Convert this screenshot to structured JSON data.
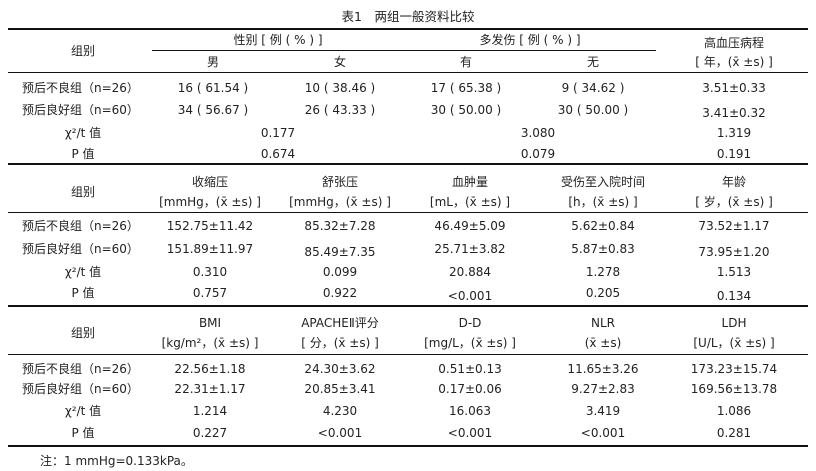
{
  "title": "表1　两组一般资料比较",
  "section1": {
    "row_header": "组别",
    "group_headers": [
      "性别 [ 例 ( % ) ]",
      "多发伤 [ 例 ( % ) ]"
    ],
    "sub_headers": [
      "男",
      "女",
      "有",
      "无"
    ],
    "col5_header_line1": "高血压病程",
    "col5_header_line2": "[ 年，(x̄ ±s) ]",
    "rows": [
      [
        "预后不良组（n=26）",
        "16 ( 61.54 )",
        "10 ( 38.46 )",
        "17 ( 65.38 )",
        "9 ( 34.62 )",
        "3.51±0.33"
      ],
      [
        "预后良好组（n=60）",
        "34 ( 56.67 )",
        "26 ( 43.33 )",
        "30 ( 50.00 )",
        "30 ( 50.00 )",
        "3.41±0.32"
      ]
    ],
    "stat_rows": [
      [
        "χ²/t 值",
        "0.177",
        "3.080",
        "1.319"
      ],
      [
        "P 值",
        "0.674",
        "0.079",
        "0.191"
      ]
    ]
  },
  "section2": {
    "row_header": "组别",
    "headers_line1": [
      "收缩压",
      "舒张压",
      "血肿量",
      "受伤至入院时间",
      "年龄"
    ],
    "headers_line2": [
      "[mmHg，(x̄ ±s) ]",
      "[mmHg，(x̄ ±s) ]",
      "[mL，(x̄ ±s) ]",
      "[h，(x̄ ±s) ]",
      "[ 岁，(x̄ ±s) ]"
    ],
    "rows": [
      [
        "预后不良组（n=26）",
        "152.75±11.42",
        "85.32±7.28",
        "46.49±5.09",
        "5.62±0.84",
        "73.52±1.17"
      ],
      [
        "预后良好组（n=60）",
        "151.89±11.97",
        "85.49±7.35",
        "25.71±3.82",
        "5.87±0.83",
        "73.95±1.20"
      ],
      [
        "χ²/t 值",
        "0.310",
        "0.099",
        "20.884",
        "1.278",
        "1.513"
      ],
      [
        "P 值",
        "0.757",
        "0.922",
        "<0.001",
        "0.205",
        "0.134"
      ]
    ]
  },
  "section3": {
    "row_header": "组别",
    "headers_line1": [
      "BMI",
      "APACHEⅡ评分",
      "D-D",
      "NLR",
      "LDH"
    ],
    "headers_line2": [
      "[kg/m²，(x̄ ±s) ]",
      "[ 分，(x̄ ±s) ]",
      "[mg/L，(x̄ ±s) ]",
      "(x̄ ±s)",
      "[U/L，(x̄ ±s) ]"
    ],
    "rows": [
      [
        "预后不良组（n=26）",
        "22.56±1.18",
        "24.30±3.62",
        "0.51±0.13",
        "11.65±3.26",
        "173.23±15.74"
      ],
      [
        "预后良好组（n=60）",
        "22.31±1.17",
        "20.85±3.41",
        "0.17±0.06",
        "9.27±2.83",
        "169.56±13.78"
      ],
      [
        "χ²/t 值",
        "1.214",
        "4.230",
        "16.063",
        "3.419",
        "1.086"
      ],
      [
        "P 值",
        "0.227",
        "<0.001",
        "<0.001",
        "<0.001",
        "0.281"
      ]
    ]
  },
  "footnote": "注：1 mmHg=0.133kPa。"
}
